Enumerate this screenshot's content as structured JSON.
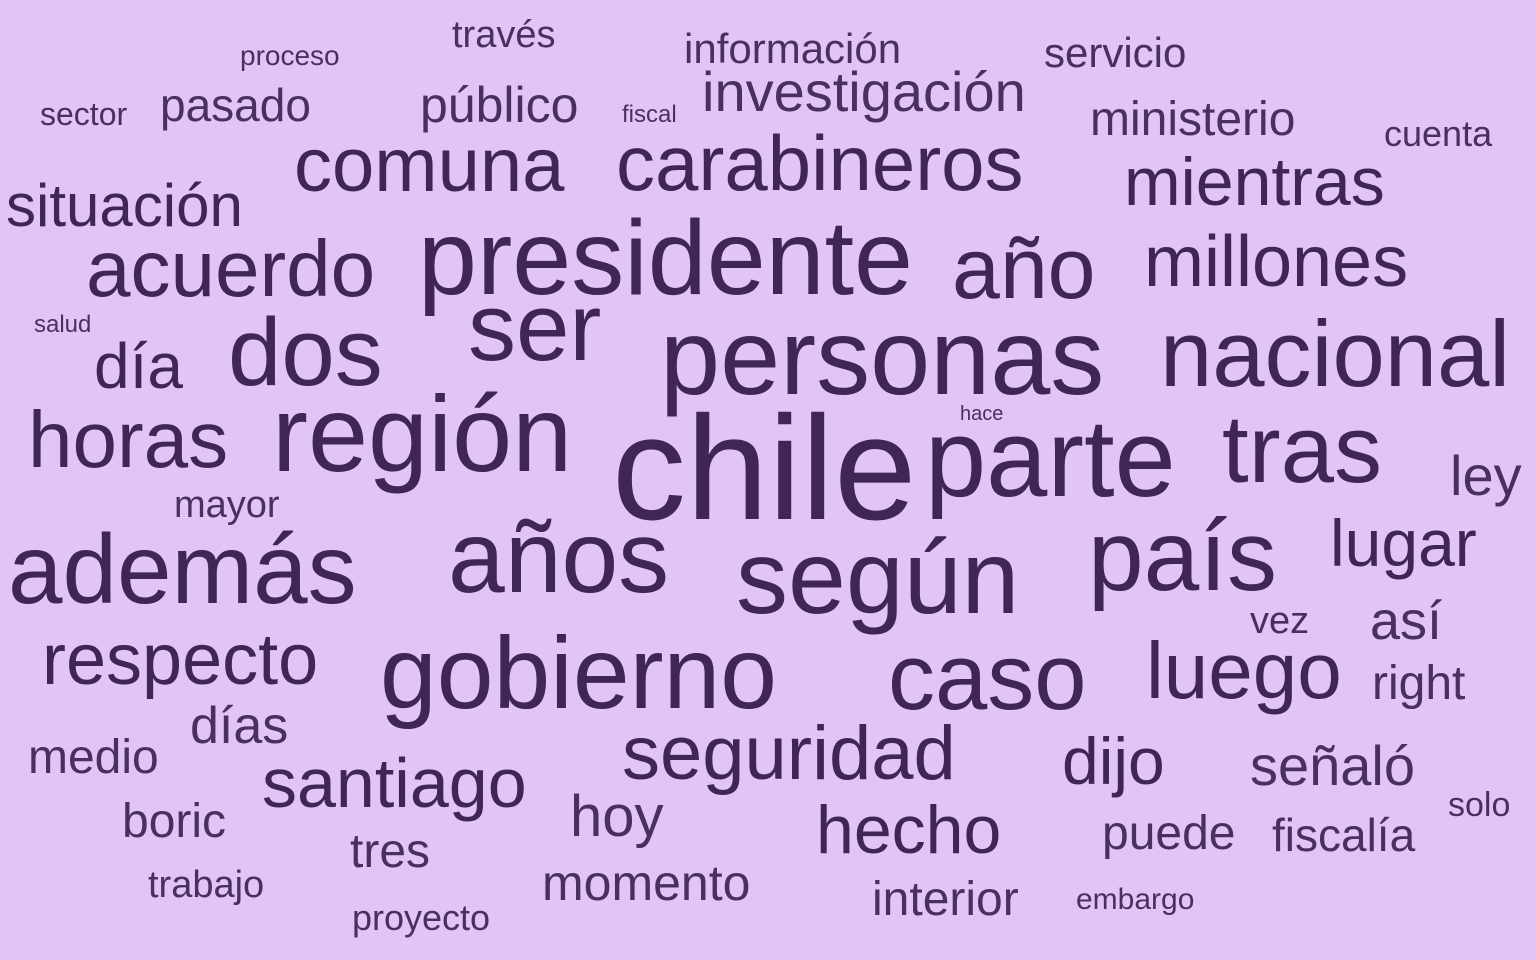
{
  "colors": {
    "background": "#e2c4f7",
    "text_dark": "#402559",
    "text_mid": "#4a2f63"
  },
  "words": [
    "chile",
    "personas",
    "presidente",
    "región",
    "parte",
    "además",
    "años",
    "según",
    "país",
    "gobierno",
    "ser",
    "nacional",
    "dos",
    "tras",
    "caso",
    "horas",
    "carabineros",
    "año",
    "comuna",
    "acuerdo",
    "millones",
    "luego",
    "seguridad",
    "respecto",
    "mientras",
    "santiago",
    "hecho",
    "lugar",
    "día",
    "investigación",
    "situación",
    "dijo",
    "señaló",
    "público",
    "pasado",
    "hoy",
    "días",
    "momento",
    "así",
    "ministerio",
    "ley",
    "interior",
    "puede",
    "fiscalía",
    "right",
    "boric",
    "medio",
    "tres",
    "información",
    "servicio",
    "trabajo",
    "vez",
    "mayor",
    "través",
    "proyecto",
    "cuenta",
    "solo",
    "sector",
    "embargo",
    "proceso",
    "salud",
    "fiscal",
    "hace"
  ]
}
